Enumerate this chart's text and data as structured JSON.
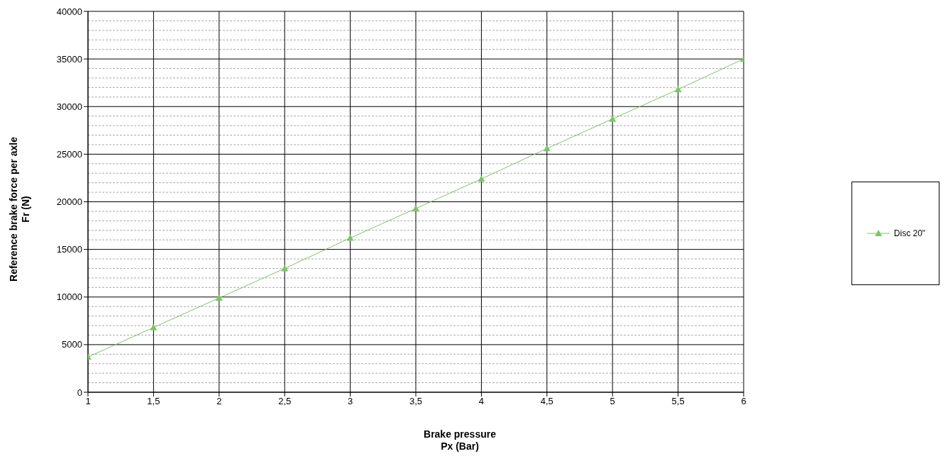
{
  "chart_data": {
    "type": "line",
    "xlabel": "Brake pressure\nPx (Bar)",
    "ylabel": "Reference brake force per axle\nFr (N)",
    "x": [
      1,
      1.5,
      2,
      2.5,
      3,
      3.5,
      4,
      4.5,
      5,
      5.5,
      6
    ],
    "series": [
      {
        "name": "Disc 20\"",
        "color": "#7cc46a",
        "values": [
          3700,
          6800,
          9900,
          13000,
          16200,
          19300,
          22400,
          25600,
          28700,
          31800,
          35000
        ]
      }
    ],
    "xlim": [
      1,
      6
    ],
    "xticks": [
      1,
      {
        "value": 1.5,
        "label": "1,5"
      },
      2,
      {
        "value": 2.5,
        "label": "2,5"
      },
      3,
      {
        "value": 3.5,
        "label": "3,5"
      },
      4,
      {
        "value": 4.5,
        "label": "4,5"
      },
      5,
      {
        "value": 5.5,
        "label": "5,5"
      },
      6
    ],
    "ylim": [
      0,
      40000
    ],
    "yticks": [
      0,
      5000,
      10000,
      15000,
      20000,
      25000,
      30000,
      35000,
      40000
    ],
    "grid": true,
    "legend": "right",
    "marker": "triangle",
    "line_style": "solid"
  }
}
